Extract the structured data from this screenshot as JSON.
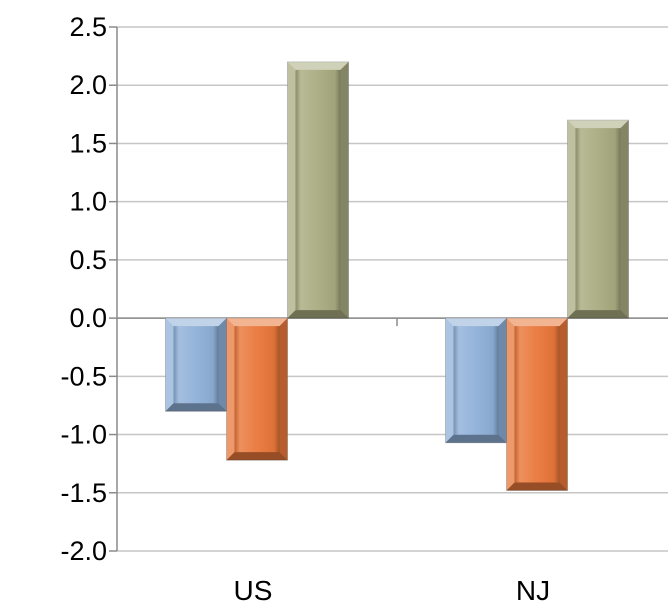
{
  "chart_data": {
    "type": "bar",
    "categories": [
      "US",
      "NJ"
    ],
    "series": [
      {
        "values": [
          -0.8,
          -1.07
        ],
        "color": "#8fb0d8"
      },
      {
        "values": [
          -1.22,
          -1.48
        ],
        "color": "#e9773a"
      },
      {
        "values": [
          2.2,
          1.7
        ],
        "color": "#a9ab80"
      }
    ],
    "ylim": [
      -2.0,
      2.5
    ],
    "yticks": [
      "-2.0",
      "-1.5",
      "-1.0",
      "-0.5",
      "0.0",
      "0.5",
      "1.0",
      "1.5",
      "2.0",
      "2.5"
    ],
    "grid": true,
    "legend": "none",
    "title": "",
    "xlabel": "",
    "ylabel": ""
  }
}
